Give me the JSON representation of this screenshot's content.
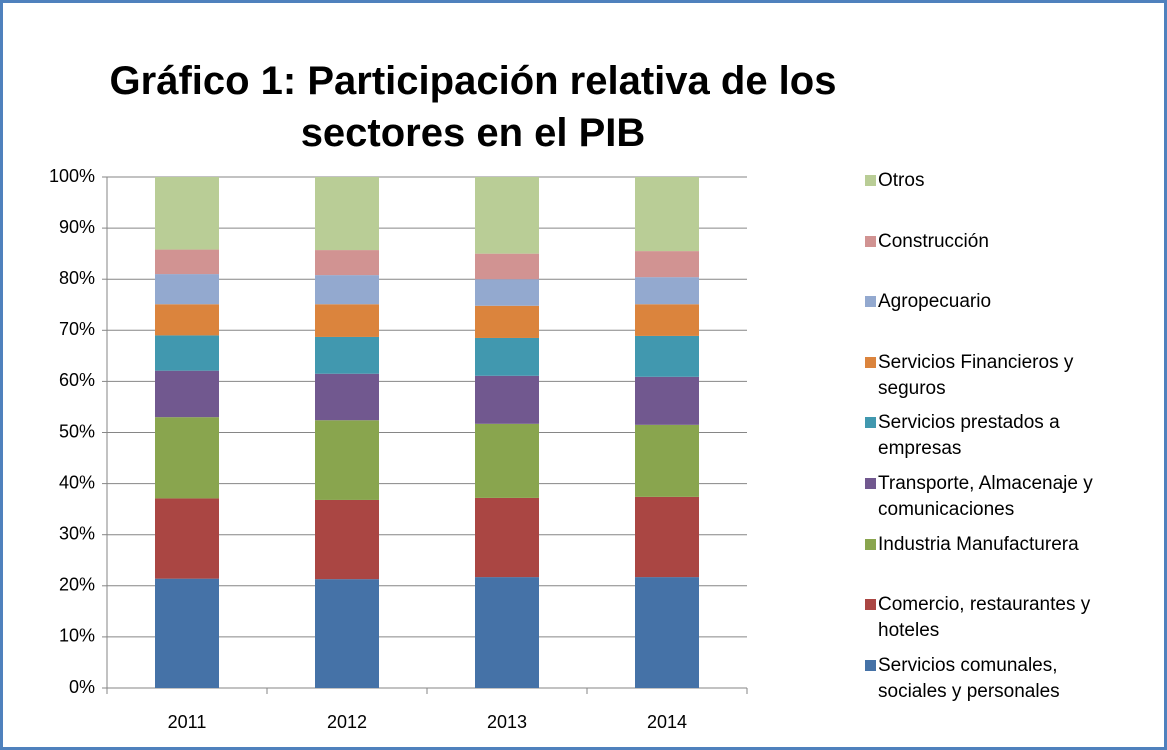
{
  "chart_data": {
    "type": "stacked_bar",
    "title": "Gráfico 1: Participación relativa de los sectores en el PIB",
    "categories": [
      "2011",
      "2012",
      "2013",
      "2014"
    ],
    "series": [
      {
        "name": "Servicios comunales, sociales y personales",
        "color": "#4572a7",
        "values": [
          21.4,
          21.3,
          21.7,
          21.7
        ]
      },
      {
        "name": "Comercio, restaurantes y hoteles",
        "color": "#aa4643",
        "values": [
          15.7,
          15.5,
          15.5,
          15.7
        ]
      },
      {
        "name": "Industria Manufacturera",
        "color": "#89a54e",
        "values": [
          15.9,
          15.6,
          14.5,
          14.1
        ]
      },
      {
        "name": "Transporte, Almacenaje y comunicaciones",
        "color": "#71588f",
        "values": [
          9.1,
          9.1,
          9.4,
          9.4
        ]
      },
      {
        "name": "Servicios prestados a empresas",
        "color": "#4198af",
        "values": [
          6.9,
          7.2,
          7.4,
          8.0
        ]
      },
      {
        "name": "Servicios Financieros y seguros",
        "color": "#db843d",
        "values": [
          6.1,
          6.4,
          6.3,
          6.2
        ]
      },
      {
        "name": "Agropecuario",
        "color": "#93a9cf",
        "values": [
          5.9,
          5.7,
          5.2,
          5.3
        ]
      },
      {
        "name": "Construcción",
        "color": "#d19392",
        "values": [
          4.8,
          4.9,
          5.0,
          5.1
        ]
      },
      {
        "name": "Otros",
        "color": "#b9cd96",
        "values": [
          14.2,
          14.3,
          15.0,
          14.5
        ]
      }
    ],
    "ylim": [
      0,
      100
    ],
    "yticks": [
      {
        "value": 0,
        "label": "0%"
      },
      {
        "value": 10,
        "label": "10%"
      },
      {
        "value": 20,
        "label": "20%"
      },
      {
        "value": 30,
        "label": "30%"
      },
      {
        "value": 40,
        "label": "40%"
      },
      {
        "value": 50,
        "label": "50%"
      },
      {
        "value": 60,
        "label": "60%"
      },
      {
        "value": 70,
        "label": "70%"
      },
      {
        "value": 80,
        "label": "80%"
      },
      {
        "value": 90,
        "label": "90%"
      },
      {
        "value": 100,
        "label": "100%"
      }
    ],
    "grid": true,
    "legend": "right"
  }
}
